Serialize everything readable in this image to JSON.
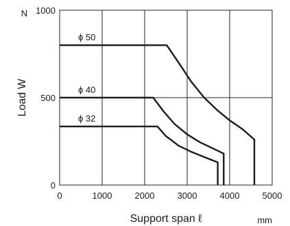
{
  "chart_data": {
    "type": "line",
    "title": "",
    "xlabel": "Support span ℓ",
    "x_unit": "mm",
    "ylabel": "Load  W",
    "y_unit": "N",
    "xlim": [
      0,
      5000
    ],
    "ylim": [
      0,
      1000
    ],
    "x_ticks": [
      0,
      1000,
      2000,
      3000,
      4000,
      5000
    ],
    "x_tick_labels": [
      "0",
      "1000",
      "2000",
      "3000",
      "4000",
      "5000"
    ],
    "y_ticks": [
      0,
      500,
      1000
    ],
    "y_tick_labels": [
      "0",
      "500",
      "1000"
    ],
    "grid": true,
    "legend": "inline labels",
    "series": [
      {
        "name": "ϕ 50",
        "points": [
          [
            0,
            800
          ],
          [
            2520,
            800
          ],
          [
            2800,
            700
          ],
          [
            3100,
            590
          ],
          [
            3400,
            500
          ],
          [
            3700,
            430
          ],
          [
            4000,
            370
          ],
          [
            4300,
            320
          ],
          [
            4580,
            260
          ],
          [
            4580,
            0
          ]
        ]
      },
      {
        "name": "ϕ 40",
        "points": [
          [
            0,
            500
          ],
          [
            2200,
            500
          ],
          [
            2450,
            420
          ],
          [
            2700,
            350
          ],
          [
            3000,
            290
          ],
          [
            3300,
            245
          ],
          [
            3600,
            210
          ],
          [
            3860,
            180
          ],
          [
            3860,
            0
          ]
        ]
      },
      {
        "name": "ϕ 32",
        "points": [
          [
            0,
            335
          ],
          [
            2300,
            335
          ],
          [
            2500,
            280
          ],
          [
            2800,
            225
          ],
          [
            3100,
            190
          ],
          [
            3400,
            160
          ],
          [
            3720,
            130
          ],
          [
            3720,
            0
          ]
        ]
      }
    ]
  }
}
